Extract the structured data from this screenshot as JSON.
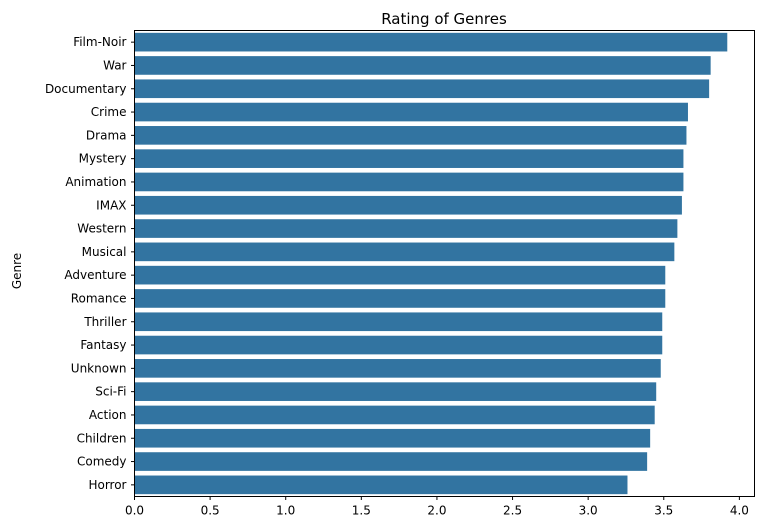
{
  "chart_data": {
    "type": "bar",
    "orientation": "horizontal",
    "title": "Rating of Genres",
    "xlabel": "",
    "ylabel": "Genre",
    "xlim": [
      0,
      4.1
    ],
    "xticks": [
      "0.0",
      "0.5",
      "1.0",
      "1.5",
      "2.0",
      "2.5",
      "3.0",
      "3.5",
      "4.0"
    ],
    "categories": [
      "Film-Noir",
      "War",
      "Documentary",
      "Crime",
      "Drama",
      "Mystery",
      "Animation",
      "IMAX",
      "Western",
      "Musical",
      "Adventure",
      "Romance",
      "Thriller",
      "Fantasy",
      "Unknown",
      "Sci-Fi",
      "Action",
      "Children",
      "Comedy",
      "Horror"
    ],
    "values": [
      3.92,
      3.81,
      3.8,
      3.66,
      3.65,
      3.63,
      3.63,
      3.62,
      3.59,
      3.57,
      3.51,
      3.51,
      3.49,
      3.49,
      3.48,
      3.45,
      3.44,
      3.41,
      3.39,
      3.26
    ],
    "grid": false,
    "bar_color": "#3274a1"
  }
}
